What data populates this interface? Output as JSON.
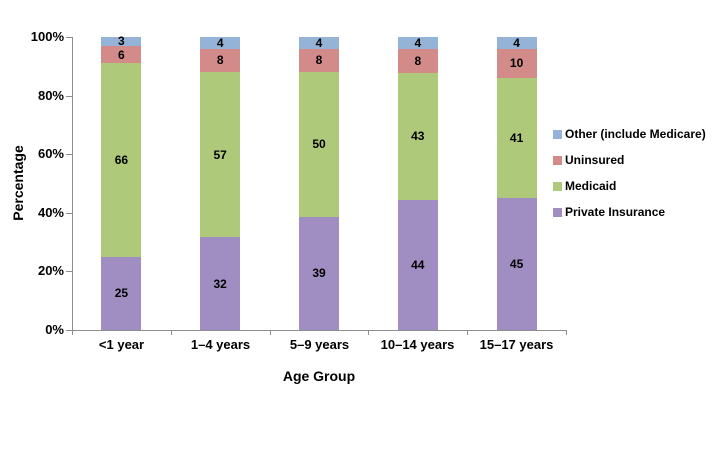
{
  "chart_data": {
    "type": "bar",
    "stacked": true,
    "percent_stacked": true,
    "title": "",
    "xlabel": "Age Group",
    "ylabel": "Percentage",
    "categories": [
      "<1 year",
      "1–4 years",
      "5–9 years",
      "10–14 years",
      "15–17 years"
    ],
    "series": [
      {
        "name": "Private Insurance",
        "color": "#A08EC2",
        "values": [
          25,
          32,
          39,
          44,
          45
        ]
      },
      {
        "name": "Medicaid",
        "color": "#AFC97A",
        "values": [
          66,
          57,
          50,
          43,
          41
        ]
      },
      {
        "name": "Uninsured",
        "color": "#D28B88",
        "values": [
          6,
          8,
          8,
          8,
          10
        ]
      },
      {
        "name": "Other (include Medicare)",
        "color": "#95B3D7",
        "values": [
          3,
          4,
          4,
          4,
          4
        ]
      }
    ],
    "legend_order_top_to_bottom": [
      "Other (include Medicare)",
      "Uninsured",
      "Medicaid",
      "Private Insurance"
    ],
    "legend_position": "right",
    "y_ticks": [
      "0%",
      "20%",
      "40%",
      "60%",
      "80%",
      "100%"
    ],
    "ylim": [
      0,
      100
    ],
    "grid": false,
    "axis_color": "#8E8E8E",
    "label_color": "#000000"
  }
}
